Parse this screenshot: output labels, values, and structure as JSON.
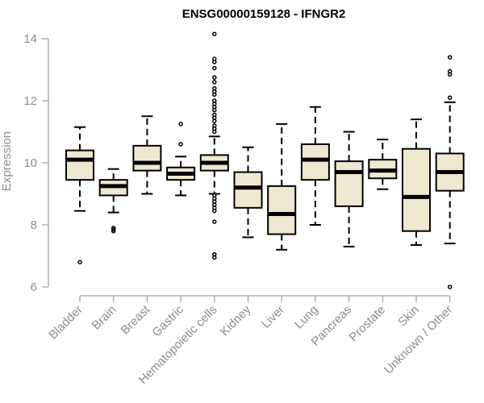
{
  "chart_data": {
    "type": "boxplot",
    "title": "ENSG00000159128 - IFNGR2",
    "xlabel": "",
    "ylabel": "Expression",
    "ylim": [
      6,
      14
    ],
    "yticks": [
      6,
      8,
      10,
      12,
      14
    ],
    "grid": false,
    "colors": {
      "box_fill": "#efe8d0",
      "axis": "#8c8c8c",
      "median": "#000000"
    },
    "categories": [
      "Bladder",
      "Brain",
      "Breast",
      "Gastric",
      "Hematopoietic cells",
      "Kidney",
      "Liver",
      "Lung",
      "Pancreas",
      "Prostate",
      "Skin",
      "Unknown / Other"
    ],
    "boxes": [
      {
        "whislo": 8.45,
        "q1": 9.45,
        "med": 10.1,
        "q3": 10.4,
        "whishi": 11.15,
        "fliers": [
          6.8
        ]
      },
      {
        "whislo": 8.4,
        "q1": 8.95,
        "med": 9.25,
        "q3": 9.45,
        "whishi": 9.8,
        "fliers": [
          7.8,
          7.85,
          7.9
        ]
      },
      {
        "whislo": 9.0,
        "q1": 9.75,
        "med": 10.0,
        "q3": 10.55,
        "whishi": 11.5,
        "fliers": []
      },
      {
        "whislo": 8.95,
        "q1": 9.45,
        "med": 9.65,
        "q3": 9.85,
        "whishi": 10.2,
        "fliers": [
          11.25,
          10.6
        ]
      },
      {
        "whislo": 9.0,
        "q1": 9.75,
        "med": 10.0,
        "q3": 10.25,
        "whishi": 10.85,
        "fliers": [
          14.15,
          13.35,
          13.25,
          13.05,
          12.75,
          12.6,
          12.4,
          12.3,
          12.2,
          12.0,
          11.9,
          11.8,
          11.7,
          11.55,
          11.45,
          11.35,
          11.2,
          11.1,
          11.0,
          8.95,
          8.85,
          8.75,
          8.65,
          8.55,
          8.45,
          8.1,
          7.05,
          6.95
        ]
      },
      {
        "whislo": 7.6,
        "q1": 8.55,
        "med": 9.2,
        "q3": 9.7,
        "whishi": 10.5,
        "fliers": []
      },
      {
        "whislo": 7.2,
        "q1": 7.7,
        "med": 8.35,
        "q3": 9.25,
        "whishi": 11.25,
        "fliers": []
      },
      {
        "whislo": 8.0,
        "q1": 9.45,
        "med": 10.1,
        "q3": 10.6,
        "whishi": 11.8,
        "fliers": []
      },
      {
        "whislo": 7.3,
        "q1": 8.6,
        "med": 9.7,
        "q3": 10.05,
        "whishi": 11.0,
        "fliers": []
      },
      {
        "whislo": 9.15,
        "q1": 9.5,
        "med": 9.75,
        "q3": 10.1,
        "whishi": 10.75,
        "fliers": []
      },
      {
        "whislo": 7.35,
        "q1": 7.8,
        "med": 8.9,
        "q3": 10.45,
        "whishi": 11.4,
        "fliers": []
      },
      {
        "whislo": 7.4,
        "q1": 9.1,
        "med": 9.7,
        "q3": 10.3,
        "whishi": 11.95,
        "fliers": [
          13.4,
          12.95,
          12.85,
          12.1,
          6.0
        ]
      }
    ]
  }
}
